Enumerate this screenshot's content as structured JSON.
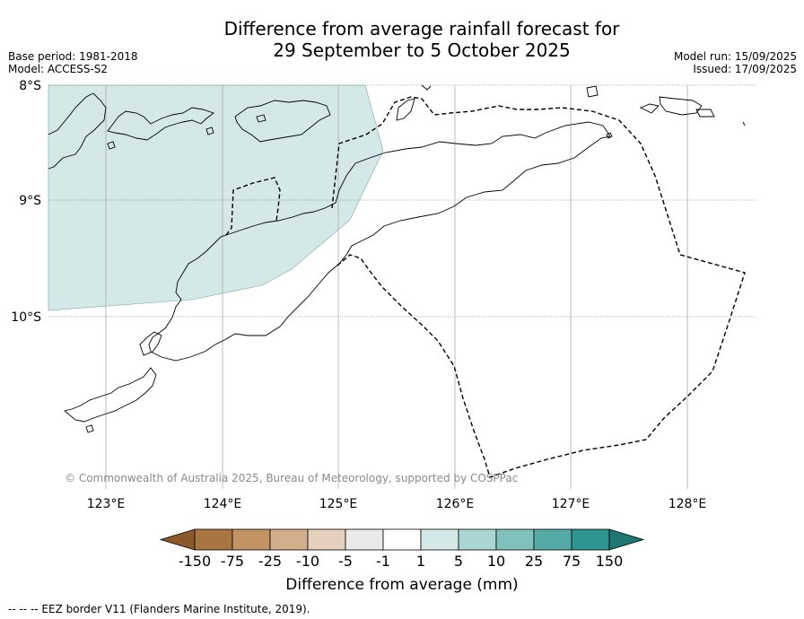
{
  "title": {
    "line1": "Difference from average rainfall forecast for",
    "line2": "29 September to 5 October 2025"
  },
  "meta_left": {
    "base_period": "Base period: 1981-2018",
    "model": "Model: ACCESS-S2"
  },
  "meta_right": {
    "model_run": "Model run: 15/09/2025",
    "issued": "Issued: 17/09/2025"
  },
  "map": {
    "lat_labels": [
      "8°S",
      "9°S",
      "10°S"
    ],
    "lon_labels": [
      "123°E",
      "124°E",
      "125°E",
      "126°E",
      "127°E",
      "128°E"
    ],
    "copyright": "© Commonwealth of Australia 2025, Bureau of Meteorology, supported by COSPPac",
    "shaded_region_category": "1 to 5",
    "shaded_region_color": "#d4e9e7"
  },
  "colorbar": {
    "label": "Difference from average (mm)",
    "tick_labels": [
      "-150",
      "-75",
      "-25",
      "-10",
      "-5",
      "-1",
      "1",
      "5",
      "10",
      "25",
      "75",
      "150"
    ],
    "colors": [
      "#8c5a2a",
      "#a87741",
      "#c29363",
      "#d2ae8d",
      "#e4d0bd",
      "#eaeaea",
      "#ffffff",
      "#d4e9e7",
      "#a9d5d2",
      "#80c1bc",
      "#56aaa6",
      "#2e9590",
      "#1f7672"
    ]
  },
  "footnote": "--  --  -- EEZ border V11 (Flanders Marine Institute, 2019)."
}
